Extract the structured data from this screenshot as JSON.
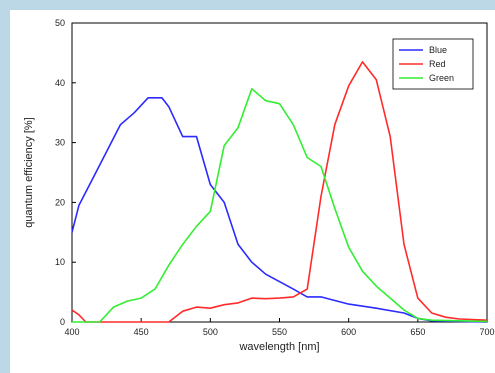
{
  "chart_data": {
    "type": "line",
    "title": "",
    "xlabel": "wavelength [nm]",
    "ylabel": "quantum efficiency [%]",
    "xlim": [
      400,
      700
    ],
    "ylim": [
      0,
      50
    ],
    "x_ticks": [
      "400",
      "450",
      "500",
      "550",
      "600",
      "650",
      "700"
    ],
    "y_ticks": [
      "0",
      "10",
      "20",
      "30",
      "40",
      "50"
    ],
    "legend_position": "top-right",
    "grid": false,
    "series": [
      {
        "name": "Blue",
        "color": "#2b2bff",
        "points": [
          [
            400,
            15
          ],
          [
            405,
            19.5
          ],
          [
            415,
            24
          ],
          [
            425,
            28.5
          ],
          [
            435,
            33
          ],
          [
            445,
            35
          ],
          [
            455,
            37.5
          ],
          [
            465,
            37.5
          ],
          [
            470,
            36
          ],
          [
            480,
            31
          ],
          [
            490,
            31
          ],
          [
            500,
            23
          ],
          [
            510,
            20
          ],
          [
            520,
            13
          ],
          [
            530,
            10
          ],
          [
            540,
            8
          ],
          [
            560,
            5.5
          ],
          [
            570,
            4.2
          ],
          [
            580,
            4.2
          ],
          [
            590,
            3.6
          ],
          [
            600,
            3
          ],
          [
            620,
            2.3
          ],
          [
            640,
            1.5
          ],
          [
            650,
            0.6
          ],
          [
            660,
            0.2
          ],
          [
            700,
            0
          ]
        ]
      },
      {
        "name": "Red",
        "color": "#ff2b2b",
        "points": [
          [
            400,
            2
          ],
          [
            405,
            1.2
          ],
          [
            410,
            0
          ],
          [
            470,
            0
          ],
          [
            480,
            1.8
          ],
          [
            490,
            2.5
          ],
          [
            500,
            2.3
          ],
          [
            510,
            2.9
          ],
          [
            520,
            3.2
          ],
          [
            530,
            4
          ],
          [
            540,
            3.9
          ],
          [
            550,
            4
          ],
          [
            560,
            4.2
          ],
          [
            570,
            5.5
          ],
          [
            580,
            21
          ],
          [
            590,
            33
          ],
          [
            600,
            39.5
          ],
          [
            610,
            43.5
          ],
          [
            620,
            40.5
          ],
          [
            630,
            31
          ],
          [
            640,
            13
          ],
          [
            650,
            4
          ],
          [
            660,
            1.5
          ],
          [
            670,
            0.8
          ],
          [
            680,
            0.5
          ],
          [
            700,
            0.3
          ]
        ]
      },
      {
        "name": "Green",
        "color": "#33ee33",
        "points": [
          [
            400,
            0
          ],
          [
            405,
            0
          ],
          [
            420,
            0
          ],
          [
            430,
            2.5
          ],
          [
            440,
            3.5
          ],
          [
            450,
            4
          ],
          [
            460,
            5.5
          ],
          [
            470,
            9.5
          ],
          [
            480,
            13
          ],
          [
            490,
            16
          ],
          [
            500,
            18.5
          ],
          [
            510,
            29.5
          ],
          [
            520,
            32.5
          ],
          [
            530,
            39
          ],
          [
            540,
            37
          ],
          [
            550,
            36.5
          ],
          [
            560,
            33
          ],
          [
            570,
            27.5
          ],
          [
            580,
            26
          ],
          [
            590,
            19
          ],
          [
            600,
            12.5
          ],
          [
            610,
            8.5
          ],
          [
            620,
            6
          ],
          [
            630,
            4
          ],
          [
            640,
            2
          ],
          [
            650,
            0.6
          ],
          [
            660,
            0.3
          ],
          [
            700,
            0.1
          ]
        ]
      }
    ]
  }
}
